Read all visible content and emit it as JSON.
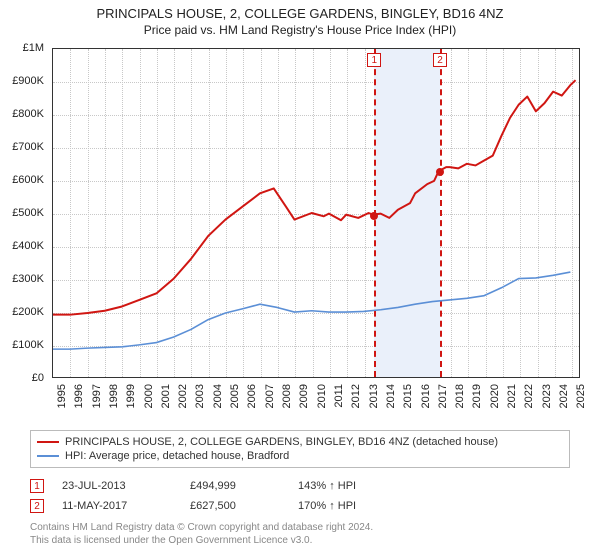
{
  "title_line1": "PRINCIPALS HOUSE, 2, COLLEGE GARDENS, BINGLEY, BD16 4NZ",
  "title_line2": "Price paid vs. HM Land Registry's House Price Index (HPI)",
  "chart": {
    "type": "line",
    "background_color": "#ffffff",
    "grid_color": "#c8c8c8",
    "axis_color": "#333333",
    "label_fontsize": 11,
    "x": {
      "min": 1995,
      "max": 2025.5,
      "ticks": [
        1995,
        1996,
        1997,
        1998,
        1999,
        2000,
        2001,
        2002,
        2003,
        2004,
        2005,
        2006,
        2007,
        2008,
        2009,
        2010,
        2011,
        2012,
        2013,
        2014,
        2015,
        2016,
        2017,
        2018,
        2019,
        2020,
        2021,
        2022,
        2023,
        2024,
        2025
      ]
    },
    "y": {
      "min": 0,
      "max": 1000000,
      "ticks": [
        0,
        100000,
        200000,
        300000,
        400000,
        500000,
        600000,
        700000,
        800000,
        900000,
        1000000
      ],
      "tick_labels": [
        "£0",
        "£100K",
        "£200K",
        "£300K",
        "£400K",
        "£500K",
        "£600K",
        "£700K",
        "£800K",
        "£900K",
        "£1M"
      ]
    },
    "series": [
      {
        "id": "subject",
        "label": "PRINCIPALS HOUSE, 2, COLLEGE GARDENS, BINGLEY, BD16 4NZ (detached house)",
        "color": "#d01612",
        "line_width": 2,
        "points": [
          [
            1995,
            190000
          ],
          [
            1996,
            190000
          ],
          [
            1997,
            195000
          ],
          [
            1998,
            202000
          ],
          [
            1999,
            215000
          ],
          [
            2000,
            235000
          ],
          [
            2001,
            255000
          ],
          [
            2002,
            300000
          ],
          [
            2003,
            360000
          ],
          [
            2004,
            430000
          ],
          [
            2005,
            480000
          ],
          [
            2006,
            520000
          ],
          [
            2007,
            560000
          ],
          [
            2007.8,
            575000
          ],
          [
            2008.5,
            520000
          ],
          [
            2009,
            480000
          ],
          [
            2010,
            500000
          ],
          [
            2010.7,
            490000
          ],
          [
            2011,
            498000
          ],
          [
            2011.7,
            478000
          ],
          [
            2012,
            495000
          ],
          [
            2012.7,
            485000
          ],
          [
            2013.3,
            500000
          ],
          [
            2013.56,
            495000
          ],
          [
            2014,
            498000
          ],
          [
            2014.5,
            485000
          ],
          [
            2015,
            510000
          ],
          [
            2015.7,
            530000
          ],
          [
            2016,
            560000
          ],
          [
            2016.7,
            588000
          ],
          [
            2017.1,
            598000
          ],
          [
            2017.36,
            627500
          ],
          [
            2017.8,
            640000
          ],
          [
            2018,
            640000
          ],
          [
            2018.5,
            636000
          ],
          [
            2019,
            650000
          ],
          [
            2019.5,
            645000
          ],
          [
            2020,
            660000
          ],
          [
            2020.5,
            675000
          ],
          [
            2021,
            735000
          ],
          [
            2021.5,
            790000
          ],
          [
            2022,
            830000
          ],
          [
            2022.5,
            855000
          ],
          [
            2023,
            810000
          ],
          [
            2023.5,
            835000
          ],
          [
            2024,
            870000
          ],
          [
            2024.5,
            858000
          ],
          [
            2025,
            890000
          ],
          [
            2025.3,
            905000
          ]
        ]
      },
      {
        "id": "hpi",
        "label": "HPI: Average price, detached house, Bradford",
        "color": "#5b8fd6",
        "line_width": 1.6,
        "points": [
          [
            1995,
            85000
          ],
          [
            1996,
            85000
          ],
          [
            1997,
            88000
          ],
          [
            1998,
            90000
          ],
          [
            1999,
            92000
          ],
          [
            2000,
            98000
          ],
          [
            2001,
            105000
          ],
          [
            2002,
            122000
          ],
          [
            2003,
            145000
          ],
          [
            2004,
            175000
          ],
          [
            2005,
            195000
          ],
          [
            2006,
            208000
          ],
          [
            2007,
            222000
          ],
          [
            2008,
            212000
          ],
          [
            2009,
            198000
          ],
          [
            2010,
            202000
          ],
          [
            2011,
            198000
          ],
          [
            2012,
            198000
          ],
          [
            2013,
            200000
          ],
          [
            2014,
            205000
          ],
          [
            2015,
            212000
          ],
          [
            2016,
            222000
          ],
          [
            2017,
            230000
          ],
          [
            2018,
            235000
          ],
          [
            2019,
            240000
          ],
          [
            2020,
            248000
          ],
          [
            2021,
            272000
          ],
          [
            2022,
            300000
          ],
          [
            2023,
            302000
          ],
          [
            2024,
            310000
          ],
          [
            2025,
            320000
          ]
        ]
      }
    ],
    "shaded_band": {
      "x_from": 2013.56,
      "x_to": 2017.36,
      "color": "#eaf0fa"
    },
    "sale_markers": [
      {
        "n": "1",
        "x": 2013.56,
        "y": 494999
      },
      {
        "n": "2",
        "x": 2017.36,
        "y": 627500
      }
    ],
    "marker_line_color": "#d01612",
    "marker_dot_color": "#d01612"
  },
  "legend": [
    {
      "color": "#d01612",
      "text": "PRINCIPALS HOUSE, 2, COLLEGE GARDENS, BINGLEY, BD16 4NZ (detached house)"
    },
    {
      "color": "#5b8fd6",
      "text": "HPI: Average price, detached house, Bradford"
    }
  ],
  "sales": [
    {
      "n": "1",
      "date": "23-JUL-2013",
      "price": "£494,999",
      "delta": "143% ↑ HPI"
    },
    {
      "n": "2",
      "date": "11-MAY-2017",
      "price": "£627,500",
      "delta": "170% ↑ HPI"
    }
  ],
  "footer_line1": "Contains HM Land Registry data © Crown copyright and database right 2024.",
  "footer_line2": "This data is licensed under the Open Government Licence v3.0."
}
